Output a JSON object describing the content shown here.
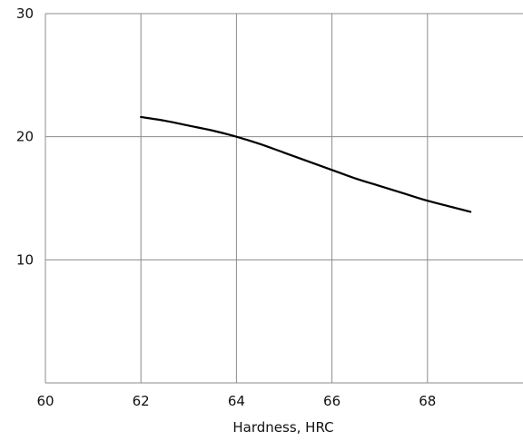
{
  "chart_data": {
    "type": "line",
    "title": "",
    "xlabel": "Hardness, HRC",
    "ylabel": "",
    "xlim": [
      60,
      70
    ],
    "ylim": [
      0,
      30
    ],
    "x_ticks": [
      60,
      62,
      64,
      66,
      68
    ],
    "y_ticks": [
      10,
      20,
      30
    ],
    "grid": true,
    "series": [
      {
        "x": [
          62.0,
          62.5,
          63.0,
          63.5,
          64.0,
          64.5,
          65.0,
          65.5,
          66.0,
          66.5,
          67.0,
          67.5,
          68.0,
          68.5,
          68.9
        ],
        "y": [
          21.6,
          21.3,
          20.9,
          20.5,
          20.0,
          19.4,
          18.7,
          18.0,
          17.3,
          16.6,
          16.0,
          15.4,
          14.8,
          14.3,
          13.9
        ],
        "color": "#000000"
      }
    ]
  }
}
